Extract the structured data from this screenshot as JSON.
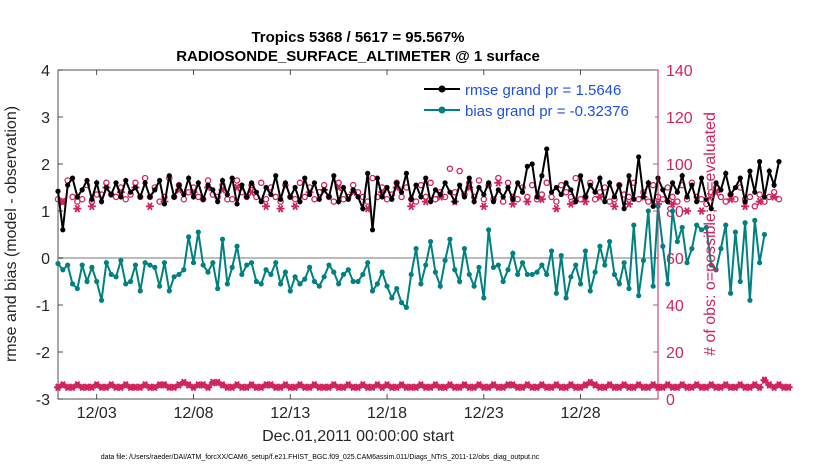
{
  "chart_data": {
    "type": "line",
    "title_line1": "Tropics 5368 / 5617 = 95.567%",
    "title_line2": "RADIOSONDE_SURFACE_ALTIMETER @ 1 surface",
    "xlabel": "Dec.01,2011 00:00:00 start",
    "ylabel_left": "rmse and bias (model - observation)",
    "ylabel_right": "# of obs: o=possible; ∗=evaluated",
    "footnote": "data file: /Users/raeder/DAI/ATM_forcXX/CAM6_setup/f.e21.FHIST_BGC.f09_025.CAM6assim.011/Diags_NTrS_2011-12/obs_diag_output.nc",
    "x_range": [
      1,
      32
    ],
    "x_ticks": [
      3,
      8,
      13,
      18,
      23,
      28
    ],
    "x_tick_labels": [
      "12/03",
      "12/08",
      "12/13",
      "12/18",
      "12/23",
      "12/28"
    ],
    "ylim_left": [
      -3,
      4
    ],
    "y_ticks_left": [
      "-3",
      "-2",
      "-1",
      "0",
      "1",
      "2",
      "3",
      "4"
    ],
    "ylim_right": [
      0,
      140
    ],
    "y_ticks_right": [
      "0",
      "20",
      "40",
      "60",
      "80",
      "100",
      "120",
      "140"
    ],
    "zero_line": 0,
    "legend": [
      {
        "label": "rmse grand pr = 1.5646",
        "color": "#000000"
      },
      {
        "label": "bias grand pr = -0.32376",
        "color": "#008080"
      }
    ],
    "colors": {
      "rmse": "#000000",
      "bias": "#008080",
      "obs": "#d0245e",
      "zero": "#bbbbbb"
    },
    "time_start": 1,
    "time_step": 0.25,
    "rmse": [
      1.42,
      0.6,
      1.55,
      1.7,
      1.3,
      1.45,
      1.65,
      1.25,
      1.6,
      1.2,
      1.5,
      1.35,
      1.6,
      1.3,
      1.65,
      1.4,
      1.5,
      1.3,
      1.6,
      1.3,
      1.45,
      1.65,
      1.15,
      1.75,
      1.3,
      1.55,
      1.35,
      1.7,
      1.3,
      1.6,
      1.25,
      1.55,
      1.45,
      1.2,
      1.65,
      1.35,
      1.7,
      1.15,
      1.55,
      1.3,
      1.6,
      1.4,
      1.2,
      1.5,
      1.35,
      1.75,
      1.25,
      1.6,
      1.3,
      1.5,
      1.2,
      1.7,
      1.35,
      1.6,
      1.25,
      1.45,
      1.3,
      1.75,
      1.2,
      1.5,
      1.25,
      1.45,
      1.3,
      1.05,
      1.8,
      0.6,
      1.7,
      1.3,
      1.5,
      1.25,
      1.6,
      1.4,
      1.8,
      1.25,
      1.55,
      1.3,
      1.7,
      1.2,
      1.45,
      1.35,
      1.6,
      1.4,
      1.2,
      1.55,
      1.3,
      1.7,
      1.2,
      1.5,
      1.35,
      1.6,
      1.2,
      1.45,
      1.3,
      1.5,
      1.25,
      1.6,
      1.4,
      1.95,
      2.0,
      1.3,
      1.75,
      2.32,
      1.4,
      1.5,
      1.35,
      1.6,
      1.45,
      1.2,
      1.75,
      1.3,
      1.55,
      1.4,
      1.7,
      1.2,
      1.6,
      1.3,
      1.55,
      1.05,
      1.75,
      1.25,
      2.15,
      1.3,
      1.6,
      1.1,
      1.7,
      1.45,
      1.2,
      1.6,
      1.4,
      1.75,
      1.3,
      1.55,
      1.2,
      1.7,
      1.25,
      1.05,
      1.6,
      1.45,
      1.8,
      1.35,
      1.5,
      1.7,
      1.2,
      1.85,
      1.4,
      2.05,
      1.3,
      1.85,
      1.55,
      2.05
    ],
    "bias": [
      -0.12,
      -0.25,
      -0.15,
      -0.55,
      -0.65,
      -0.15,
      -0.5,
      -0.2,
      -0.5,
      -0.9,
      -0.1,
      -0.35,
      -0.4,
      -0.05,
      -0.55,
      -0.5,
      -0.15,
      -0.7,
      -0.1,
      -0.15,
      -0.2,
      -0.6,
      -0.1,
      -0.7,
      -0.4,
      -0.35,
      -0.25,
      0.45,
      -0.1,
      0.55,
      -0.15,
      -0.3,
      -0.1,
      -0.65,
      0.4,
      -0.55,
      -0.2,
      0.25,
      -0.35,
      -0.15,
      -0.1,
      -0.5,
      -0.55,
      -0.25,
      -0.35,
      -0.1,
      -0.55,
      -0.3,
      -0.7,
      -0.4,
      -0.55,
      -0.45,
      -0.2,
      -0.5,
      -0.6,
      -0.4,
      -0.15,
      -0.3,
      -0.55,
      -0.35,
      -0.25,
      -0.5,
      -0.5,
      -0.35,
      -0.1,
      -0.7,
      -0.55,
      -0.3,
      -0.6,
      -0.85,
      -0.65,
      -0.95,
      -1.05,
      -0.35,
      0.2,
      -0.55,
      -0.15,
      0.35,
      -0.3,
      -0.6,
      -0.05,
      0.4,
      -0.25,
      -0.5,
      0.2,
      -0.35,
      -0.6,
      -0.2,
      -0.85,
      0.6,
      -0.2,
      -0.15,
      -0.5,
      -0.25,
      0.1,
      -0.35,
      -0.1,
      -0.35,
      -0.35,
      -0.3,
      -0.15,
      -0.35,
      0.15,
      -0.75,
      0.05,
      -0.85,
      -0.4,
      -0.15,
      -0.55,
      0.15,
      -0.7,
      -0.3,
      0.25,
      -0.15,
      0.35,
      -0.35,
      -0.55,
      -0.1,
      -0.65,
      0.7,
      -0.8,
      -0.05,
      1.0,
      -0.6,
      1.1,
      0.25,
      -0.55,
      1.0,
      0.35,
      0.65,
      -0.1,
      0.2,
      0.7,
      0.6,
      0.65,
      -0.15,
      -0.25,
      0.2,
      0.7,
      -0.75,
      0.55,
      -0.5,
      0.75,
      -0.9,
      0.8,
      -0.1,
      0.5
    ],
    "obs_possible": [
      85,
      84,
      93,
      86,
      84,
      85,
      91,
      84,
      87,
      87,
      92,
      87,
      86,
      90,
      85,
      87,
      92,
      86,
      94,
      86,
      90,
      84,
      86,
      94,
      86,
      91,
      85,
      88,
      90,
      86,
      85,
      93,
      87,
      86,
      91,
      85,
      85,
      93,
      88,
      86,
      91,
      86,
      92,
      85,
      90,
      86,
      84,
      91,
      86,
      85,
      92,
      86,
      90,
      85,
      88,
      91,
      86,
      84,
      92,
      85,
      86,
      91,
      88,
      86,
      84,
      94,
      86,
      90,
      85,
      87,
      92,
      86,
      90,
      85,
      84,
      91,
      86,
      92,
      85,
      88,
      86,
      98,
      88,
      97,
      87,
      92,
      86,
      93,
      85,
      91,
      85,
      94,
      84,
      92,
      86,
      85,
      90,
      86,
      91,
      85,
      87,
      92,
      86,
      84,
      91,
      88,
      86,
      94,
      85,
      86,
      92,
      85,
      88,
      90,
      84,
      85,
      91,
      87,
      86,
      92,
      85,
      88,
      84,
      91,
      86,
      85,
      90,
      86,
      84,
      91,
      85,
      92,
      86,
      85,
      83,
      88,
      90,
      86,
      84,
      87,
      85,
      90,
      85,
      86,
      82,
      87,
      84,
      86,
      88,
      85
    ],
    "obs_evaluated": [
      85,
      84,
      91,
      85,
      81,
      84,
      88,
      82,
      85,
      84,
      90,
      84,
      82,
      88,
      83,
      85,
      90,
      83,
      92,
      82,
      88,
      81,
      84,
      91,
      79,
      89,
      82,
      86,
      88,
      84,
      82,
      90,
      81,
      84,
      89,
      81,
      82,
      90,
      86,
      84,
      88,
      83,
      90,
      82,
      88,
      84,
      81,
      89,
      83,
      82,
      90,
      83,
      88,
      81,
      86,
      89,
      83,
      81,
      90,
      82,
      84,
      88,
      86,
      83,
      81,
      91,
      82,
      88,
      82,
      84,
      90,
      83,
      88,
      82,
      81,
      89,
      84,
      90,
      82,
      86,
      79,
      95,
      84,
      93,
      84,
      90,
      83,
      91,
      82,
      89,
      82,
      92,
      81,
      90,
      83,
      82,
      88,
      84,
      89,
      82,
      85,
      90,
      83,
      81,
      89,
      85,
      83,
      92,
      82,
      84,
      90,
      82,
      86,
      88,
      81,
      82,
      89,
      84,
      83,
      90,
      82,
      86,
      81,
      89,
      83,
      82,
      87,
      83,
      81,
      89,
      80,
      90,
      82,
      80,
      78,
      85,
      88,
      82,
      79,
      85,
      80,
      87,
      82,
      83,
      78,
      84,
      81,
      83,
      86,
      82
    ],
    "obs_bottom": [
      5,
      6,
      5,
      5,
      6,
      5,
      5,
      5,
      6,
      5,
      5,
      6,
      5,
      5,
      6,
      5,
      5,
      5,
      6,
      5,
      5,
      6,
      6,
      5,
      5,
      6,
      7,
      6,
      5,
      6,
      6,
      5,
      7,
      7,
      6,
      5,
      5,
      6,
      5,
      5,
      6,
      5,
      5,
      6,
      6,
      5,
      5,
      6,
      5,
      5,
      6,
      5,
      5,
      6,
      5,
      5,
      5,
      6,
      5,
      5,
      6,
      5,
      5,
      6,
      5,
      5,
      6,
      5,
      6,
      5,
      5,
      6,
      5,
      5,
      5,
      6,
      5,
      5,
      6,
      5,
      5,
      6,
      5,
      5,
      6,
      5,
      5,
      6,
      5,
      5,
      6,
      5,
      5,
      6,
      6,
      5,
      5,
      6,
      5,
      5,
      6,
      5,
      5,
      6,
      5,
      5,
      6,
      5,
      5,
      6,
      7,
      6,
      5,
      5,
      6,
      5,
      5,
      6,
      5,
      5,
      6,
      5,
      5,
      6,
      5,
      5,
      6,
      5,
      5,
      6,
      5,
      5,
      6,
      5,
      5,
      6,
      5,
      5,
      6,
      5,
      5,
      6,
      5,
      5,
      6,
      5,
      8,
      6,
      5,
      6,
      5,
      5
    ]
  }
}
